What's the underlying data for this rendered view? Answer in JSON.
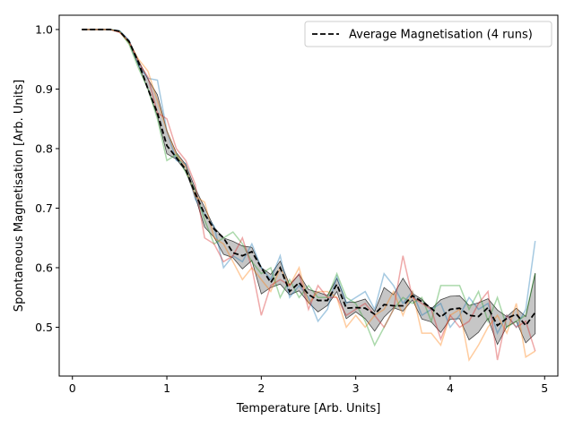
{
  "chart_data": {
    "type": "line",
    "xlabel": "Temperature [Arb. Units]",
    "ylabel": "Spontaneous Magnetisation [Arb. Units]",
    "xlim": [
      -0.14,
      5.14
    ],
    "ylim": [
      0.418,
      1.024
    ],
    "xticks": [
      "0",
      "1",
      "2",
      "3",
      "4",
      "5"
    ],
    "yticks": [
      "0.5",
      "0.6",
      "0.7",
      "0.8",
      "0.9",
      "1.0"
    ],
    "grid": false,
    "legend": {
      "placement": "top-right",
      "entries": [
        "Average Magnetisation (4 runs)"
      ]
    },
    "x": [
      0.1,
      0.2,
      0.3,
      0.4,
      0.5,
      0.6,
      0.7,
      0.8,
      0.9,
      1.0,
      1.1,
      1.2,
      1.3,
      1.4,
      1.5,
      1.6,
      1.7,
      1.8,
      1.9,
      2.0,
      2.1,
      2.2,
      2.3,
      2.4,
      2.5,
      2.6,
      2.7,
      2.8,
      2.9,
      3.0,
      3.1,
      3.2,
      3.3,
      3.4,
      3.5,
      3.6,
      3.7,
      3.8,
      3.9,
      4.0,
      4.1,
      4.2,
      4.3,
      4.4,
      4.5,
      4.6,
      4.7,
      4.8,
      4.9
    ],
    "series": [
      {
        "name": "Average Magnetisation (4 runs)",
        "color": "#000000",
        "style": "dashed",
        "values": [
          1.0,
          1.0,
          1.0,
          1.0,
          0.997,
          0.98,
          0.945,
          0.9,
          0.86,
          0.805,
          0.785,
          0.765,
          0.725,
          0.69,
          0.665,
          0.65,
          0.625,
          0.62,
          0.627,
          0.6,
          0.575,
          0.6,
          0.56,
          0.575,
          0.555,
          0.545,
          0.545,
          0.572,
          0.532,
          0.533,
          0.532,
          0.522,
          0.538,
          0.536,
          0.536,
          0.553,
          0.543,
          0.532,
          0.517,
          0.53,
          0.532,
          0.52,
          0.518,
          0.533,
          0.503,
          0.515,
          0.522,
          0.503,
          0.525
        ]
      },
      {
        "name": "",
        "color": "#1f77b4",
        "values": [
          1.0,
          1.0,
          1.0,
          1.0,
          0.998,
          0.982,
          0.94,
          0.918,
          0.915,
          0.83,
          0.78,
          0.775,
          0.715,
          0.69,
          0.67,
          0.6,
          0.62,
          0.61,
          0.64,
          0.6,
          0.58,
          0.62,
          0.55,
          0.57,
          0.55,
          0.51,
          0.53,
          0.585,
          0.54,
          0.55,
          0.56,
          0.53,
          0.59,
          0.57,
          0.54,
          0.56,
          0.52,
          0.53,
          0.54,
          0.5,
          0.52,
          0.55,
          0.53,
          0.54,
          0.49,
          0.52,
          0.5,
          0.53,
          0.645
        ]
      },
      {
        "name": "",
        "color": "#ff7f0e",
        "values": [
          1.0,
          1.0,
          1.0,
          1.0,
          0.996,
          0.978,
          0.95,
          0.93,
          0.88,
          0.83,
          0.79,
          0.77,
          0.72,
          0.71,
          0.65,
          0.64,
          0.61,
          0.58,
          0.6,
          0.58,
          0.56,
          0.6,
          0.57,
          0.6,
          0.54,
          0.56,
          0.56,
          0.55,
          0.5,
          0.52,
          0.5,
          0.52,
          0.53,
          0.56,
          0.52,
          0.56,
          0.49,
          0.49,
          0.47,
          0.52,
          0.53,
          0.445,
          0.47,
          0.5,
          0.52,
          0.49,
          0.54,
          0.45,
          0.46
        ]
      },
      {
        "name": "",
        "color": "#2ca02c",
        "values": [
          1.0,
          1.0,
          1.0,
          1.0,
          0.997,
          0.975,
          0.935,
          0.9,
          0.85,
          0.78,
          0.79,
          0.76,
          0.73,
          0.68,
          0.64,
          0.65,
          0.66,
          0.64,
          0.61,
          0.59,
          0.6,
          0.55,
          0.58,
          0.55,
          0.57,
          0.55,
          0.55,
          0.59,
          0.55,
          0.54,
          0.51,
          0.47,
          0.5,
          0.53,
          0.55,
          0.54,
          0.55,
          0.51,
          0.57,
          0.57,
          0.57,
          0.53,
          0.56,
          0.51,
          0.55,
          0.5,
          0.51,
          0.52,
          0.59
        ]
      },
      {
        "name": "",
        "color": "#d62728",
        "values": [
          1.0,
          1.0,
          1.0,
          1.0,
          0.995,
          0.98,
          0.945,
          0.92,
          0.86,
          0.85,
          0.8,
          0.78,
          0.74,
          0.65,
          0.64,
          0.61,
          0.62,
          0.65,
          0.6,
          0.52,
          0.57,
          0.58,
          0.57,
          0.59,
          0.53,
          0.57,
          0.55,
          0.55,
          0.52,
          0.53,
          0.54,
          0.52,
          0.5,
          0.53,
          0.62,
          0.55,
          0.54,
          0.53,
          0.48,
          0.52,
          0.5,
          0.51,
          0.54,
          0.56,
          0.445,
          0.52,
          0.5,
          0.51,
          0.46
        ]
      }
    ]
  }
}
